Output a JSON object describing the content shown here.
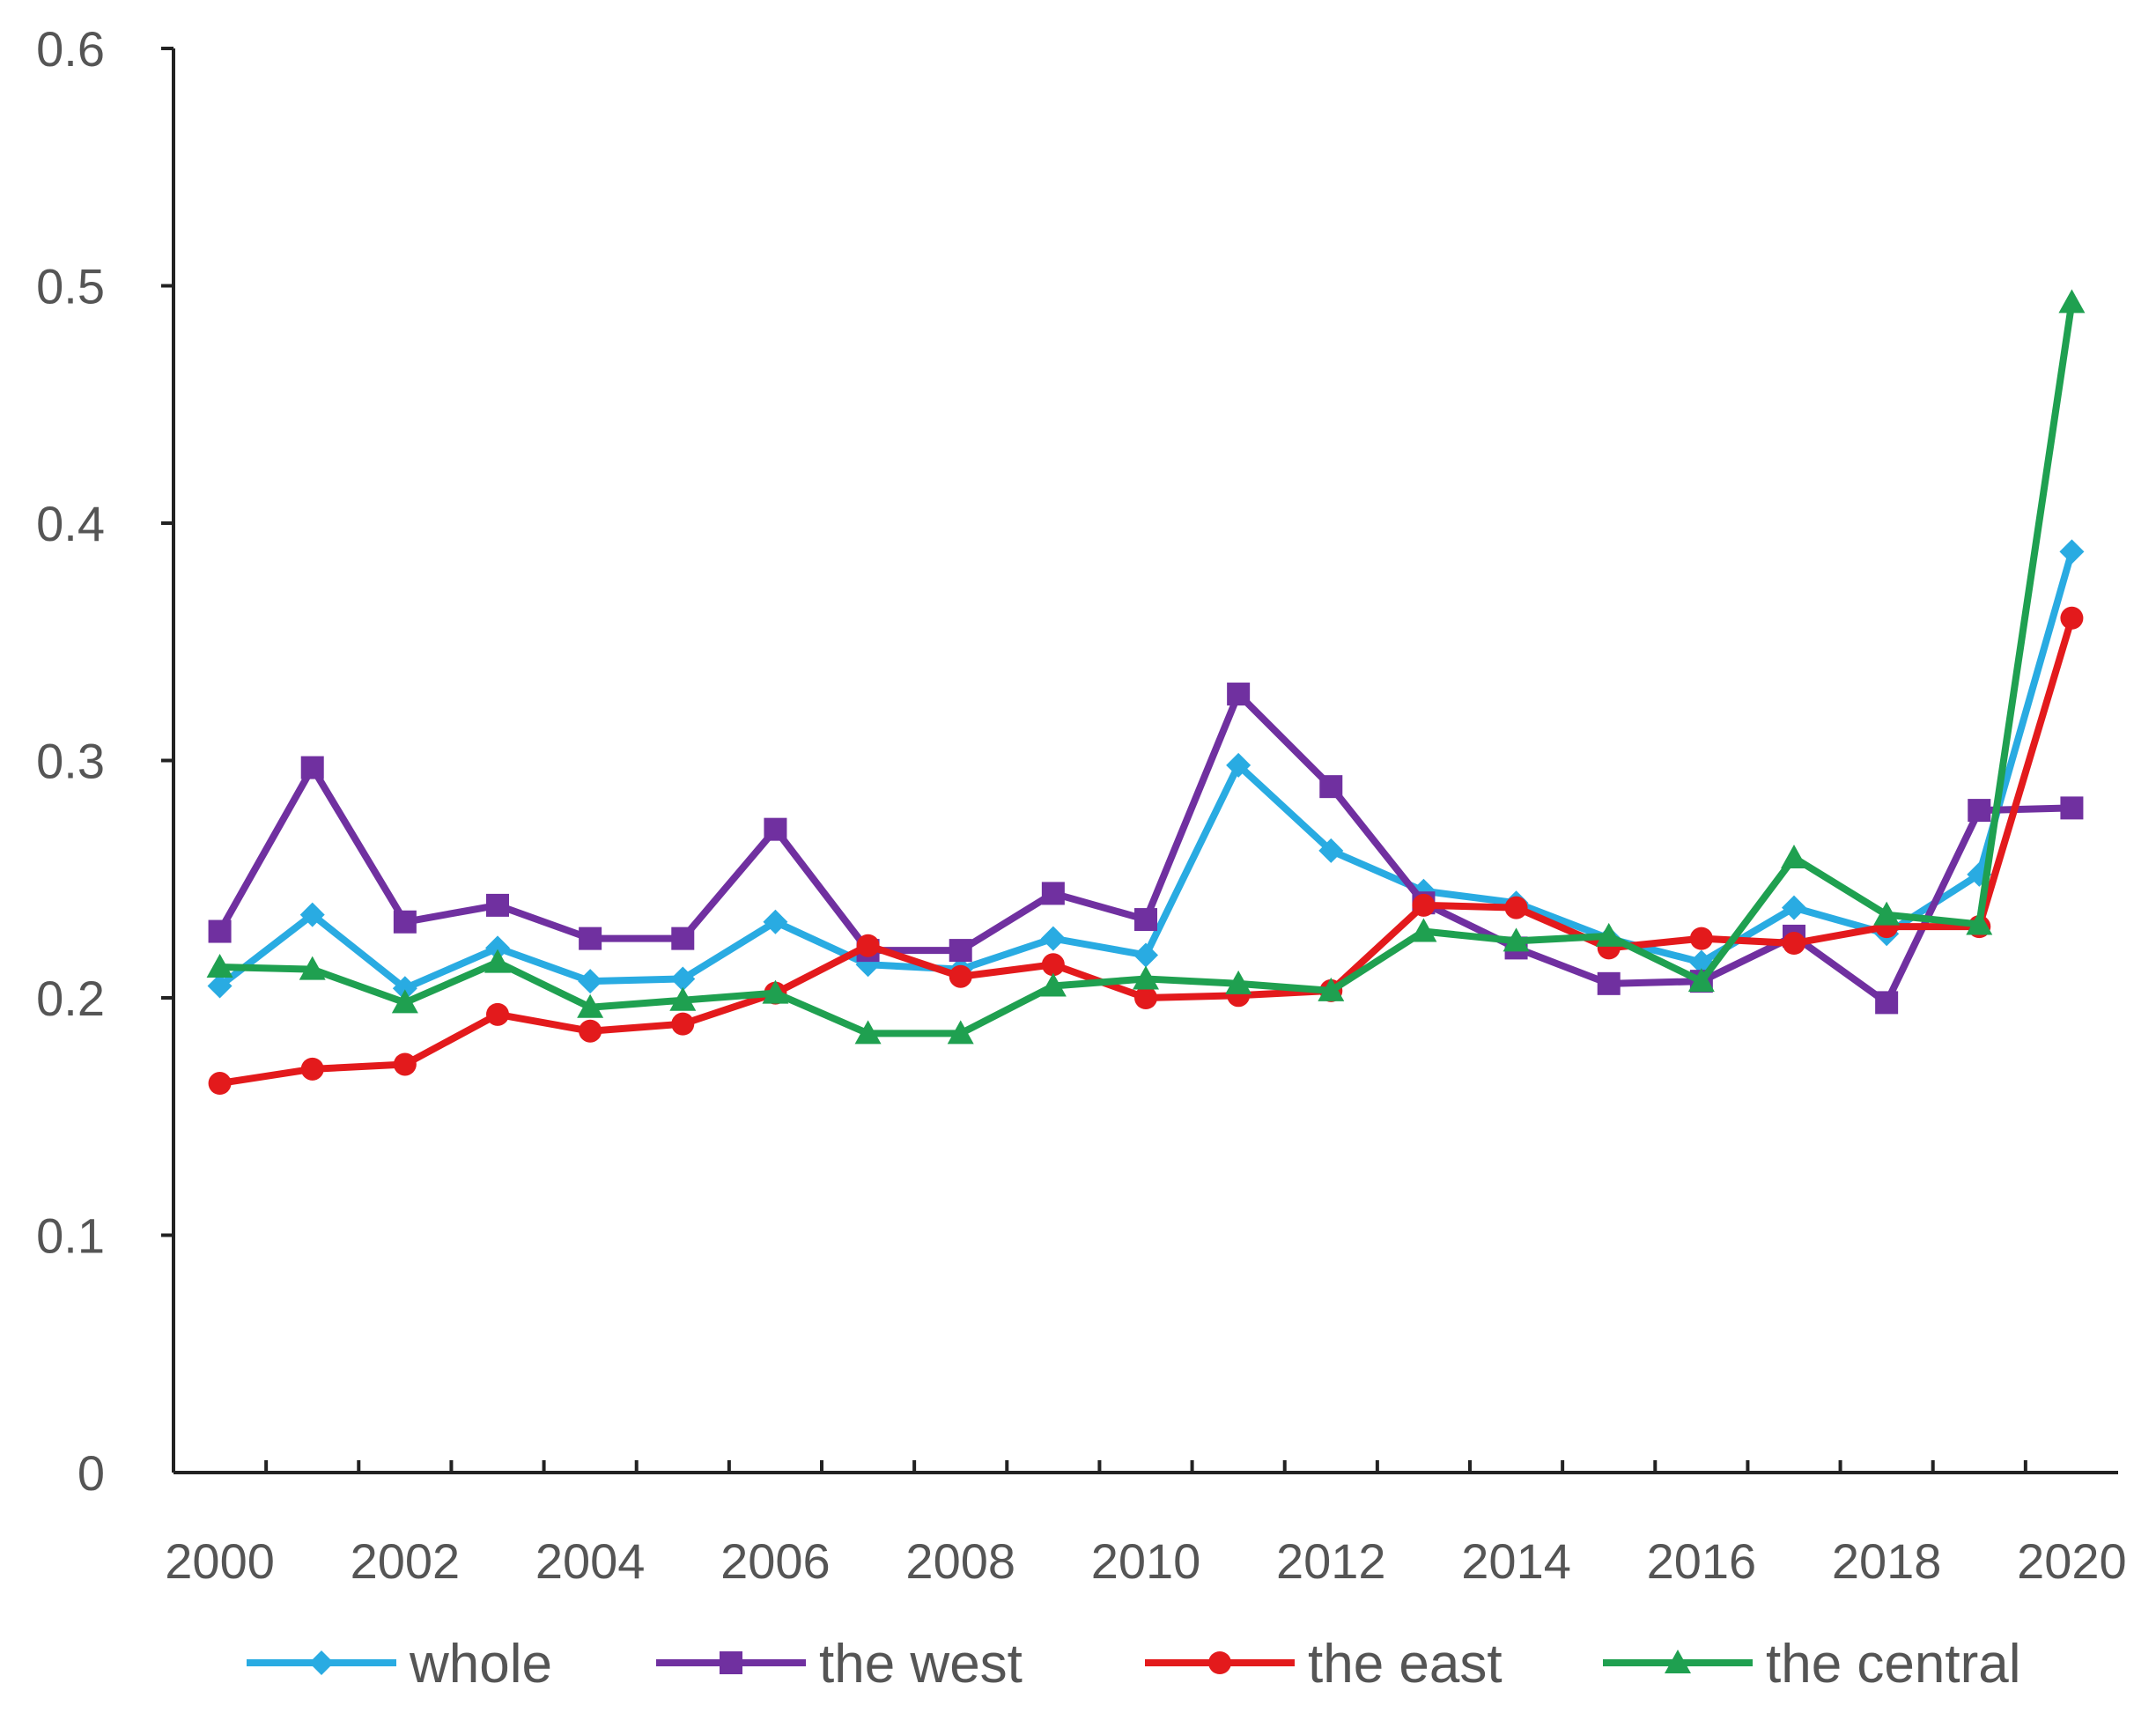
{
  "chart_data": {
    "type": "line",
    "title": "",
    "xlabel": "",
    "ylabel": "",
    "x": [
      2000,
      2001,
      2002,
      2003,
      2004,
      2005,
      2006,
      2007,
      2008,
      2009,
      2010,
      2011,
      2012,
      2013,
      2014,
      2015,
      2016,
      2017,
      2018,
      2019,
      2020
    ],
    "x_tick_labels": [
      "2000",
      "2002",
      "2004",
      "2006",
      "2008",
      "2010",
      "2012",
      "2014",
      "2016",
      "2018",
      "2020"
    ],
    "x_tick_values": [
      2000,
      2002,
      2004,
      2006,
      2008,
      2010,
      2012,
      2014,
      2016,
      2018,
      2020
    ],
    "y_tick_labels": [
      "0",
      "0.1",
      "0.2",
      "0.3",
      "0.4",
      "0.5",
      "0.6"
    ],
    "y_tick_values": [
      0,
      0.1,
      0.2,
      0.3,
      0.4,
      0.5,
      0.6
    ],
    "ylim": [
      0,
      0.6
    ],
    "xlim": [
      1999.5,
      2020.5
    ],
    "grid": false,
    "legend_position": "bottom",
    "series": [
      {
        "name": "whole",
        "color": "#29ABE2",
        "marker": "diamond",
        "values": [
          0.205,
          0.235,
          0.204,
          0.221,
          0.207,
          0.208,
          0.232,
          0.214,
          0.212,
          0.225,
          0.218,
          0.298,
          0.262,
          0.245,
          0.24,
          0.225,
          0.215,
          0.238,
          0.227,
          0.252,
          0.388
        ]
      },
      {
        "name": "the west",
        "color": "#7030A0",
        "marker": "square",
        "values": [
          0.228,
          0.297,
          0.232,
          0.239,
          0.225,
          0.225,
          0.271,
          0.22,
          0.22,
          0.244,
          0.233,
          0.328,
          0.289,
          0.24,
          0.221,
          0.206,
          0.207,
          0.226,
          0.198,
          0.279,
          0.28
        ]
      },
      {
        "name": "the east",
        "color": "#E31A1C",
        "marker": "circle",
        "values": [
          0.164,
          0.17,
          0.172,
          0.193,
          0.186,
          0.189,
          0.202,
          0.222,
          0.209,
          0.214,
          0.2,
          0.201,
          0.203,
          0.239,
          0.238,
          0.221,
          0.225,
          0.223,
          0.23,
          0.23,
          0.36
        ]
      },
      {
        "name": "the central",
        "color": "#1FA050",
        "marker": "triangle",
        "values": [
          0.213,
          0.212,
          0.198,
          0.215,
          0.196,
          0.199,
          0.202,
          0.185,
          0.185,
          0.205,
          0.208,
          0.206,
          0.203,
          0.228,
          0.224,
          0.226,
          0.207,
          0.259,
          0.235,
          0.231,
          0.493
        ]
      }
    ]
  }
}
